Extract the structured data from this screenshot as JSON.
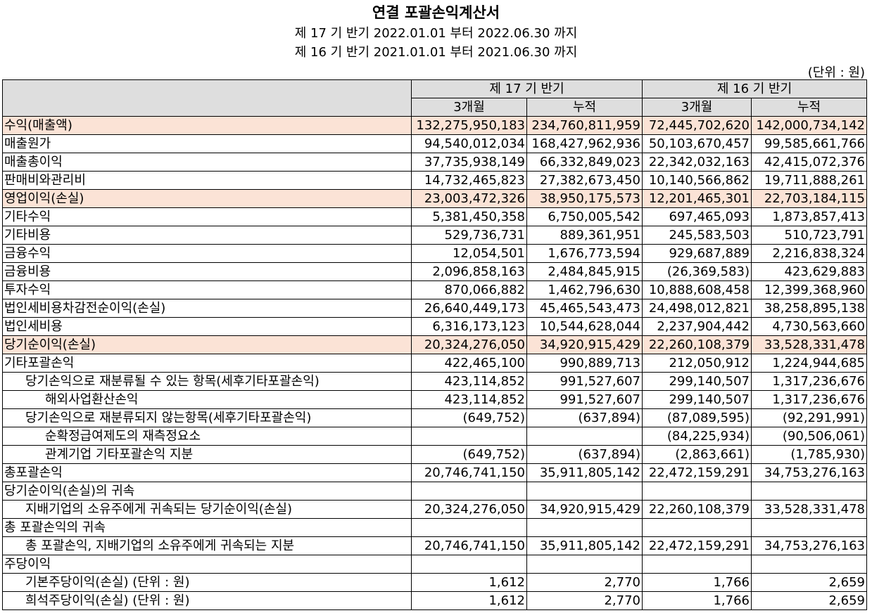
{
  "title": "연결 포괄손익계산서",
  "period1": "제 17 기 반기 2022.01.01 부터 2022.06.30 까지",
  "period2": "제 16 기 반기 2021.01.01 부터 2021.06.30 까지",
  "unit": "(단위 : 원)",
  "header": {
    "p17": "제 17 기 반기",
    "p16": "제 16 기 반기",
    "c1": "3개월",
    "c2": "누적",
    "c3": "3개월",
    "c4": "누적"
  },
  "rows": [
    {
      "label": "수익(매출액)",
      "v": [
        "132,275,950,183",
        "234,760,811,959",
        "72,445,702,620",
        "142,000,734,142"
      ],
      "hl": true,
      "indent": 0
    },
    {
      "label": "매출원가",
      "v": [
        "94,540,012,034",
        "168,427,962,936",
        "50,103,670,457",
        "99,585,661,766"
      ],
      "indent": 0
    },
    {
      "label": "매출총이익",
      "v": [
        "37,735,938,149",
        "66,332,849,023",
        "22,342,032,163",
        "42,415,072,376"
      ],
      "indent": 0
    },
    {
      "label": "판매비와관리비",
      "v": [
        "14,732,465,823",
        "27,382,673,450",
        "10,140,566,862",
        "19,711,888,261"
      ],
      "indent": 0
    },
    {
      "label": "영업이익(손실)",
      "v": [
        "23,003,472,326",
        "38,950,175,573",
        "12,201,465,301",
        "22,703,184,115"
      ],
      "hl": true,
      "indent": 0
    },
    {
      "label": "기타수익",
      "v": [
        "5,381,450,358",
        "6,750,005,542",
        "697,465,093",
        "1,873,857,413"
      ],
      "indent": 0
    },
    {
      "label": "기타비용",
      "v": [
        "529,736,731",
        "889,361,951",
        "245,583,503",
        "510,723,791"
      ],
      "indent": 0
    },
    {
      "label": "금융수익",
      "v": [
        "12,054,501",
        "1,676,773,594",
        "929,687,889",
        "2,216,838,324"
      ],
      "indent": 0
    },
    {
      "label": "금융비용",
      "v": [
        "2,096,858,163",
        "2,484,845,915",
        "(26,369,583)",
        "423,629,883"
      ],
      "indent": 0
    },
    {
      "label": "투자수익",
      "v": [
        "870,066,882",
        "1,462,796,630",
        "10,888,608,458",
        "12,399,368,960"
      ],
      "indent": 0
    },
    {
      "label": "법인세비용차감전순이익(손실)",
      "v": [
        "26,640,449,173",
        "45,465,543,473",
        "24,498,012,821",
        "38,258,895,138"
      ],
      "indent": 0
    },
    {
      "label": "법인세비용",
      "v": [
        "6,316,173,123",
        "10,544,628,044",
        "2,237,904,442",
        "4,730,563,660"
      ],
      "indent": 0
    },
    {
      "label": "당기순이익(손실)",
      "v": [
        "20,324,276,050",
        "34,920,915,429",
        "22,260,108,379",
        "33,528,331,478"
      ],
      "hl": true,
      "indent": 0
    },
    {
      "label": "기타포괄손익",
      "v": [
        "422,465,100",
        "990,889,713",
        "212,050,912",
        "1,224,944,685"
      ],
      "indent": 0
    },
    {
      "label": "당기손익으로 재분류될 수 있는 항목(세후기타포괄손익)",
      "v": [
        "423,114,852",
        "991,527,607",
        "299,140,507",
        "1,317,236,676"
      ],
      "indent": 1
    },
    {
      "label": "해외사업환산손익",
      "v": [
        "423,114,852",
        "991,527,607",
        "299,140,507",
        "1,317,236,676"
      ],
      "indent": 2
    },
    {
      "label": "당기손익으로 재분류되지 않는항목(세후기타포괄손익)",
      "v": [
        "(649,752)",
        "(637,894)",
        "(87,089,595)",
        "(92,291,991)"
      ],
      "indent": 1
    },
    {
      "label": "순확정급여제도의 재측정요소",
      "v": [
        "",
        "",
        "(84,225,934)",
        "(90,506,061)"
      ],
      "indent": 2
    },
    {
      "label": "관계기업 기타포괄손익 지분",
      "v": [
        "(649,752)",
        "(637,894)",
        "(2,863,661)",
        "(1,785,930)"
      ],
      "indent": 2
    },
    {
      "label": "총포괄손익",
      "v": [
        "20,746,741,150",
        "35,911,805,142",
        "22,472,159,291",
        "34,753,276,163"
      ],
      "indent": 0
    },
    {
      "label": "당기순이익(손실)의 귀속",
      "v": [
        "",
        "",
        "",
        ""
      ],
      "indent": 0
    },
    {
      "label": "지배기업의 소유주에게 귀속되는 당기순이익(손실)",
      "v": [
        "20,324,276,050",
        "34,920,915,429",
        "22,260,108,379",
        "33,528,331,478"
      ],
      "indent": 1
    },
    {
      "label": "총 포괄손익의 귀속",
      "v": [
        "",
        "",
        "",
        ""
      ],
      "indent": 0
    },
    {
      "label": "총 포괄손익, 지배기업의 소유주에게 귀속되는 지분",
      "v": [
        "20,746,741,150",
        "35,911,805,142",
        "22,472,159,291",
        "34,753,276,163"
      ],
      "indent": 1
    },
    {
      "label": "주당이익",
      "v": [
        "",
        "",
        "",
        ""
      ],
      "indent": 0
    },
    {
      "label": "기본주당이익(손실) (단위 : 원)",
      "v": [
        "1,612",
        "2,770",
        "1,766",
        "2,659"
      ],
      "indent": 1
    },
    {
      "label": "희석주당이익(손실) (단위 : 원)",
      "v": [
        "1,612",
        "2,770",
        "1,766",
        "2,659"
      ],
      "indent": 1
    }
  ]
}
